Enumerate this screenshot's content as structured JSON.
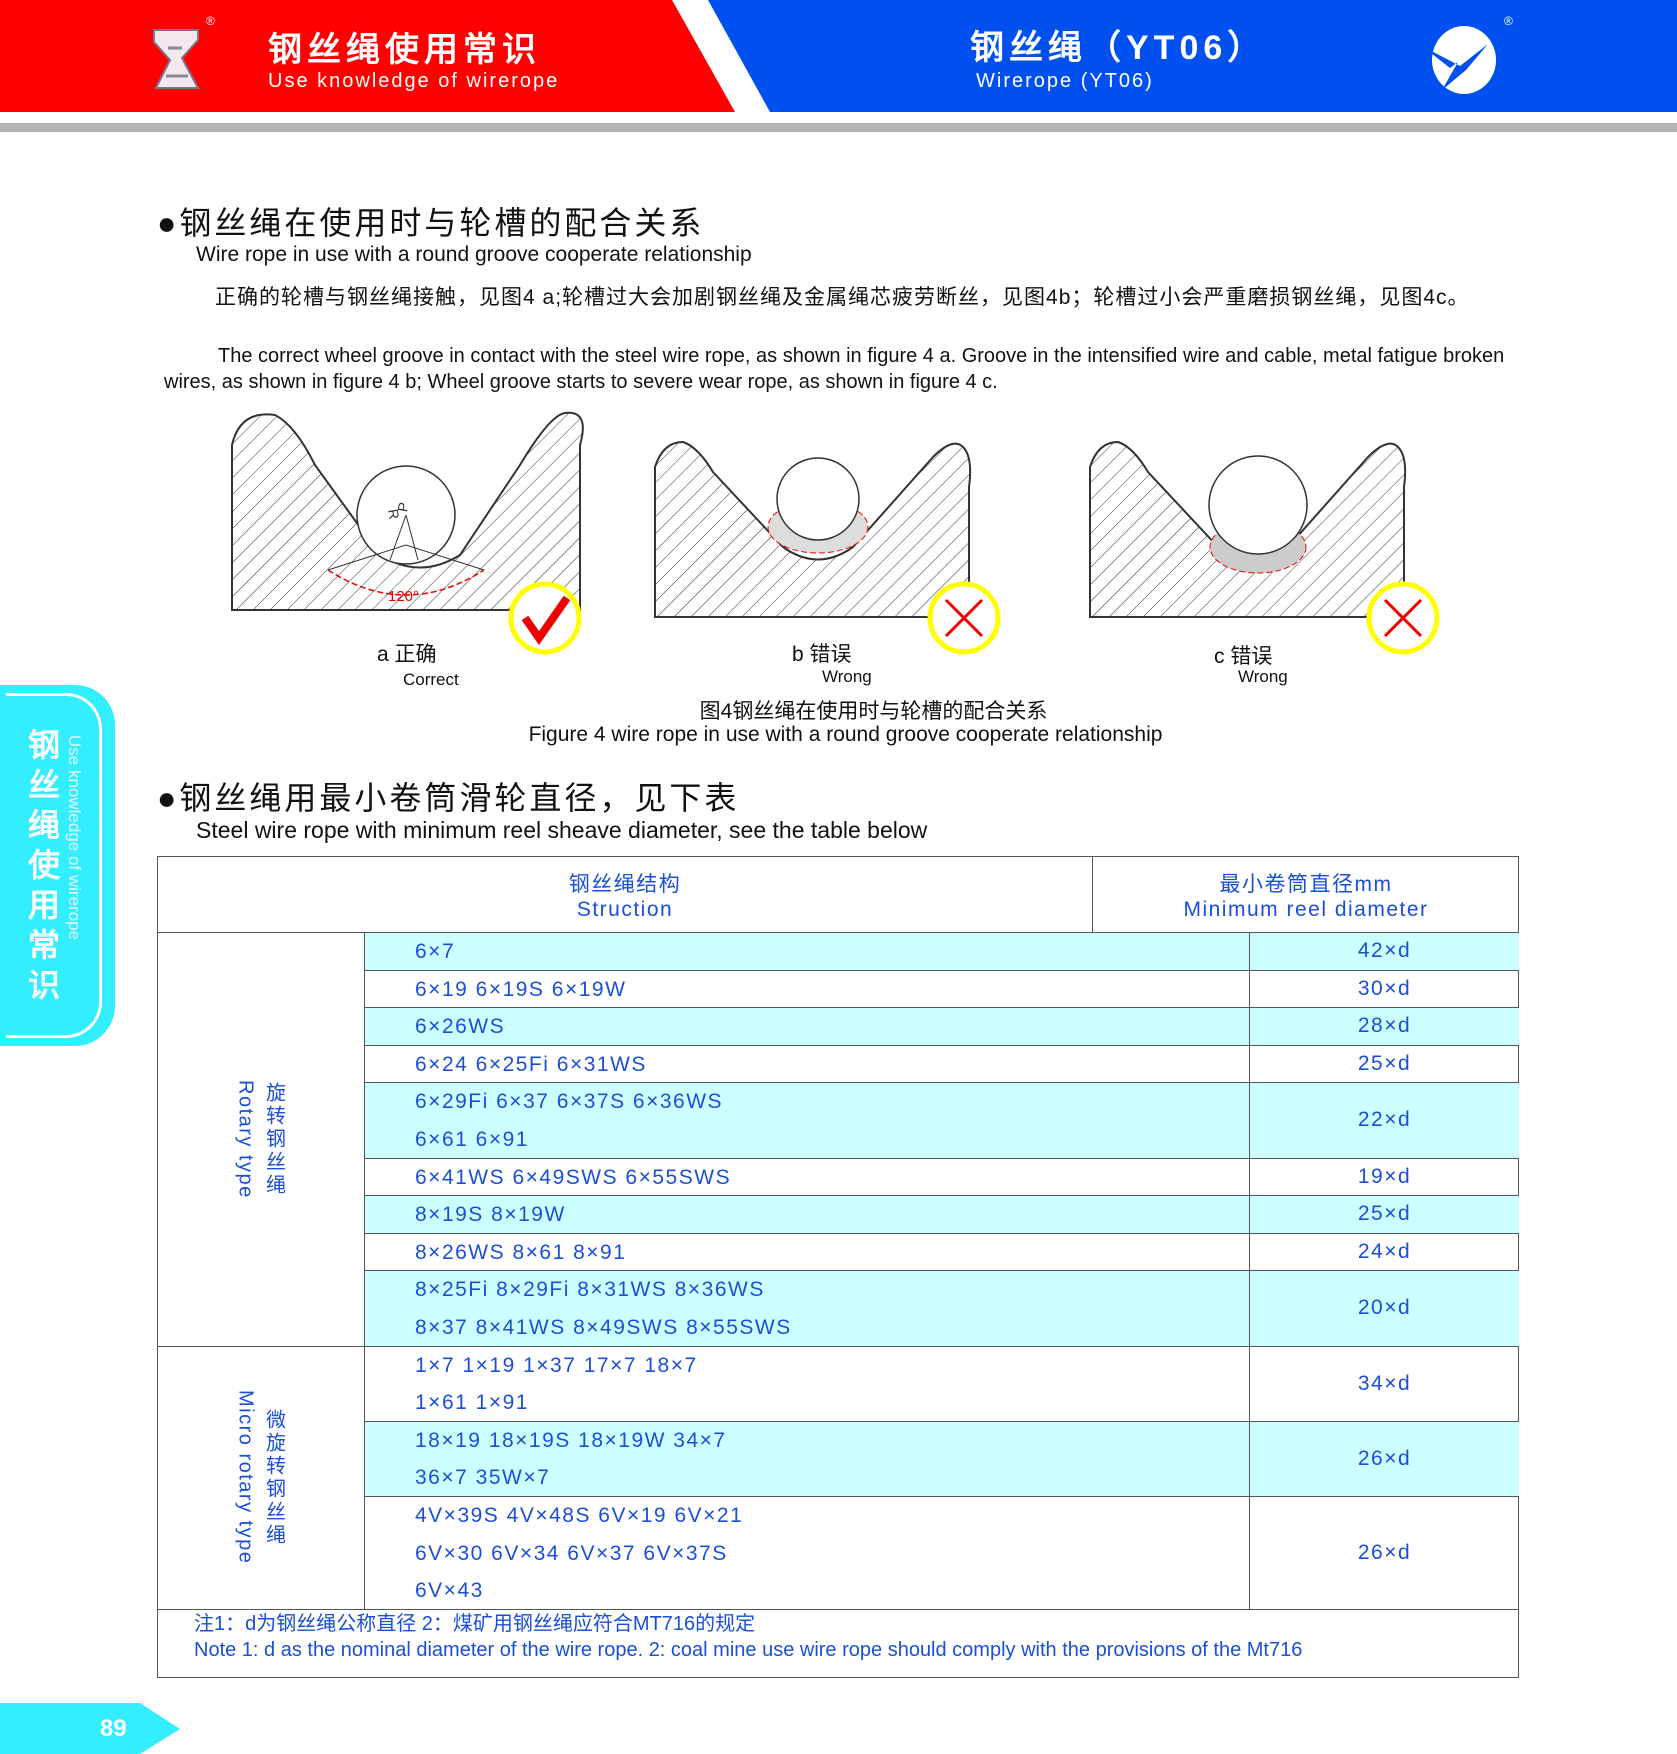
{
  "header": {
    "left_title_cn": "钢丝绳使用常识",
    "left_title_en": "Use knowledge of wirerope",
    "right_title_cn": "钢丝绳（YT06）",
    "right_title_en": "Wirerope (YT06)",
    "registered": "®",
    "colors": {
      "red": "#ff0000",
      "blue": "#0050f0"
    }
  },
  "side_tab": {
    "cn": "钢丝绳使用常识",
    "en": "Use knowledge of wirerope",
    "color": "#33eeff"
  },
  "section1": {
    "title_cn": "钢丝绳在使用时与轮槽的配合关系",
    "title_en": "Wire rope in use with a round groove cooperate relationship",
    "para_cn": "正确的轮槽与钢丝绳接触，见图4 a;轮槽过大会加剧钢丝绳及金属绳芯疲劳断丝，见图4b；轮槽过小会严重磨损钢丝绳，见图4c。",
    "para_en": "The correct wheel groove in contact with the steel wire rope, as shown in figure 4 a. Groove in the intensified wire and  cable, metal fatigue broken wires, as shown in figure 4 b; Wheel groove starts to severe wear rope, as shown in figure 4 c.",
    "figures": [
      {
        "label_cn": "a  正确",
        "label_en": "Correct",
        "mark": "check-icon",
        "angle": "120°",
        "r": "R",
        "p": "P"
      },
      {
        "label_cn": "b  错误",
        "label_en": "Wrong",
        "mark": "cross-icon"
      },
      {
        "label_cn": "c  错误",
        "label_en": "Wrong",
        "mark": "cross-icon"
      }
    ],
    "caption_cn": "图4钢丝绳在使用时与轮槽的配合关系",
    "caption_en": "Figure 4 wire rope in use with a round groove cooperate relationship"
  },
  "section2": {
    "title_cn": "钢丝绳用最小卷筒滑轮直径，见下表",
    "title_en": "Steel wire rope with minimum reel sheave diameter, see the table below"
  },
  "table": {
    "header_struct_cn": "钢丝绳结构",
    "header_struct_en": "Struction",
    "header_min_cn": "最小卷筒直径mm",
    "header_min_en": "Minimum reel diameter",
    "groups": [
      {
        "cn": "旋转钢丝绳",
        "en": "Rotary type",
        "rows": [
          {
            "lines": [
              "6×7"
            ],
            "min": "42×d"
          },
          {
            "lines": [
              "6×19  6×19S  6×19W"
            ],
            "min": "30×d"
          },
          {
            "lines": [
              "6×26WS"
            ],
            "min": "28×d"
          },
          {
            "lines": [
              "6×24  6×25Fi  6×31WS"
            ],
            "min": "25×d"
          },
          {
            "lines": [
              "6×29Fi  6×37  6×37S  6×36WS",
              "6×61  6×91"
            ],
            "min": "22×d"
          },
          {
            "lines": [
              "6×41WS  6×49SWS  6×55SWS"
            ],
            "min": "19×d"
          },
          {
            "lines": [
              "8×19S  8×19W"
            ],
            "min": "25×d"
          },
          {
            "lines": [
              "8×26WS  8×61  8×91"
            ],
            "min": "24×d"
          },
          {
            "lines": [
              "8×25Fi  8×29Fi  8×31WS  8×36WS",
              "8×37  8×41WS  8×49SWS  8×55SWS"
            ],
            "min": "20×d"
          }
        ]
      },
      {
        "cn": "微旋转钢丝绳",
        "en": "Micro rotary type",
        "rows": [
          {
            "lines": [
              "1×7  1×19  1×37  17×7  18×7",
              "1×61  1×91"
            ],
            "min": "34×d"
          },
          {
            "lines": [
              "18×19  18×19S  18×19W  34×7",
              "36×7  35W×7"
            ],
            "min": "26×d"
          },
          {
            "lines": [
              "4V×39S  4V×48S  6V×19  6V×21",
              "6V×30   6V×34  6V×37  6V×37S",
              "6V×43"
            ],
            "min": "26×d"
          }
        ]
      }
    ],
    "note_cn": "注1：d为钢丝绳公称直径 2：煤矿用钢丝绳应符合MT716的规定",
    "note_en": "Note 1: d as the nominal diameter of the wire rope. 2: coal mine use wire rope should comply with the provisions of the Mt716"
  },
  "page_number": "89"
}
